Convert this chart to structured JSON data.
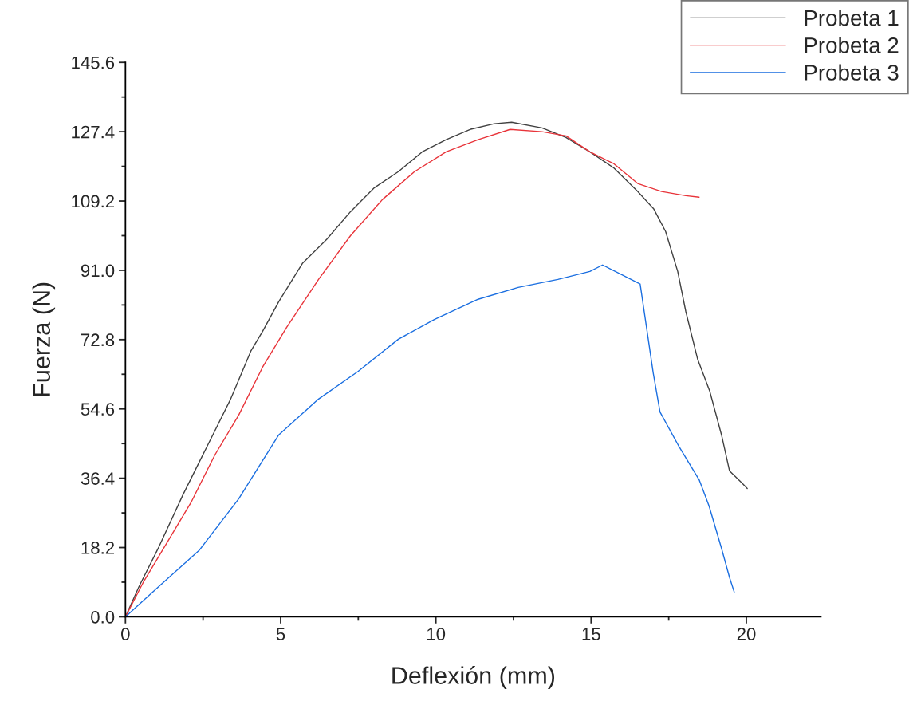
{
  "chart_data": {
    "type": "line",
    "xlabel": "Deflexión (mm)",
    "ylabel": "Fuerza (N)",
    "xlim": [
      0,
      22.4
    ],
    "ylim": [
      0,
      145.6
    ],
    "xticks": [
      0,
      5,
      10,
      15,
      20
    ],
    "yticks": [
      {
        "value": 0,
        "label": "0.0"
      },
      18.2,
      36.4,
      54.6,
      72.8,
      {
        "value": 91,
        "label": "91.0"
      },
      109.2,
      127.4,
      145.6
    ],
    "grid": false,
    "legend": "top right",
    "marker": "none",
    "line_style": "solid",
    "series": [
      {
        "name": "Probeta 1",
        "color": "#404040",
        "x": [
          0,
          0.44,
          1.08,
          1.85,
          2.62,
          3.39,
          4.04,
          4.42,
          4.94,
          5.7,
          6.48,
          7.25,
          8.02,
          8.79,
          9.56,
          10.33,
          11.1,
          11.88,
          12.44,
          13.42,
          14.19,
          14.96,
          15.73,
          16.5,
          17.02,
          17.4,
          17.79,
          18.05,
          18.43,
          18.82,
          19.2,
          19.46,
          19.85,
          20.03
        ],
        "values": [
          0,
          8,
          18.4,
          32,
          44.6,
          57.2,
          69.8,
          75,
          82.8,
          92.8,
          99.1,
          106.4,
          112.7,
          116.9,
          122.1,
          125.3,
          128,
          129.5,
          129.9,
          128.4,
          125.9,
          122.1,
          117.9,
          111.7,
          107.1,
          101.2,
          90.7,
          80.2,
          67.7,
          59.3,
          47.8,
          38.3,
          35.2,
          33.7
        ]
      },
      {
        "name": "Probeta 2",
        "color": "#e8343a",
        "x": [
          0,
          0.57,
          1.34,
          2.11,
          2.88,
          3.65,
          4.42,
          5.19,
          6.22,
          7.25,
          8.28,
          9.31,
          10.33,
          11.36,
          12.39,
          13.42,
          14.19,
          14.96,
          15.73,
          16.5,
          17.27,
          18.05,
          18.48
        ],
        "values": [
          0,
          9,
          19.5,
          30,
          42.5,
          53,
          65.6,
          76,
          88.6,
          100.1,
          109.6,
          116.9,
          122.1,
          125.3,
          128,
          127.4,
          126.3,
          122.1,
          119,
          113.8,
          111.7,
          110.6,
          110.2
        ]
      },
      {
        "name": "Probeta 3",
        "color": "#1a6ee0",
        "x": [
          0,
          1.08,
          2.37,
          3.65,
          4.94,
          6.22,
          7.5,
          8.79,
          9.95,
          11.36,
          12.65,
          13.93,
          14.96,
          15.37,
          16.58,
          17.0,
          17.22,
          17.84,
          18.48,
          18.8,
          19.2,
          19.46,
          19.61
        ],
        "values": [
          0,
          8,
          17.4,
          31,
          47.8,
          57.2,
          64.5,
          72.9,
          78.1,
          83.4,
          86.5,
          88.6,
          90.7,
          92.4,
          87.4,
          64.1,
          53.8,
          44.6,
          36,
          29.1,
          18,
          10.3,
          6.5
        ]
      }
    ]
  }
}
